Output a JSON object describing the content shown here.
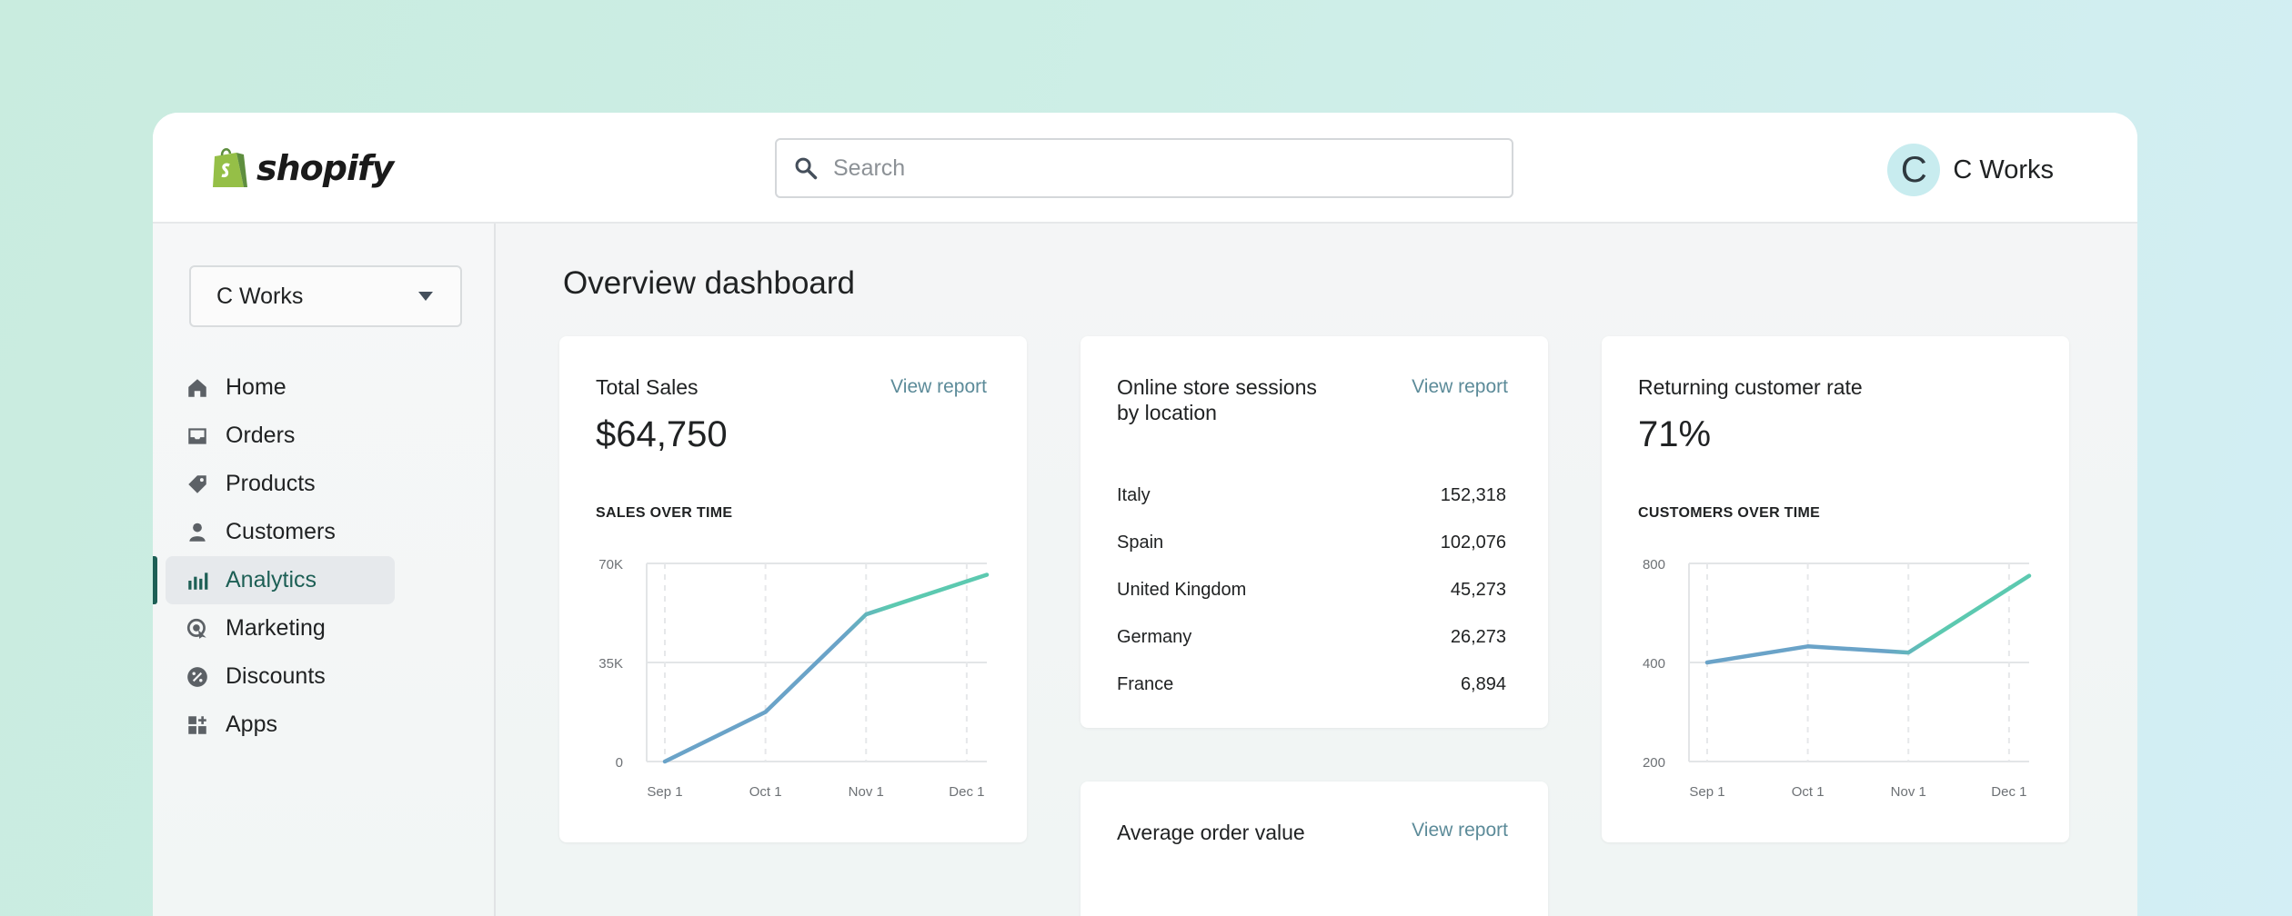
{
  "brand": {
    "name": "shopify"
  },
  "search": {
    "placeholder": "Search"
  },
  "user": {
    "initial": "C",
    "name": "C Works"
  },
  "store_selector": {
    "value": "C Works"
  },
  "nav": {
    "items": [
      {
        "label": "Home",
        "icon": "home-icon"
      },
      {
        "label": "Orders",
        "icon": "orders-icon"
      },
      {
        "label": "Products",
        "icon": "tag-icon"
      },
      {
        "label": "Customers",
        "icon": "person-icon"
      },
      {
        "label": "Analytics",
        "icon": "bar-chart-icon",
        "active": true
      },
      {
        "label": "Marketing",
        "icon": "target-icon"
      },
      {
        "label": "Discounts",
        "icon": "discount-icon"
      },
      {
        "label": "Apps",
        "icon": "apps-icon"
      }
    ]
  },
  "page": {
    "title": "Overview dashboard"
  },
  "colors": {
    "accent": "#1d5f55",
    "line_start": "#6aa3c8",
    "line_end": "#5cc9b0",
    "link": "#5c8b99"
  },
  "cards": {
    "total_sales": {
      "title": "Total Sales",
      "link": "View report",
      "value": "$64,750",
      "section": "SALES OVER TIME"
    },
    "sessions": {
      "title_line1": "Online store sessions",
      "title_line2": "by location",
      "link": "View report",
      "rows": [
        {
          "country": "Italy",
          "value": "152,318"
        },
        {
          "country": "Spain",
          "value": "102,076"
        },
        {
          "country": "United Kingdom",
          "value": "45,273"
        },
        {
          "country": "Germany",
          "value": "26,273"
        },
        {
          "country": "France",
          "value": "6,894"
        }
      ]
    },
    "returning": {
      "title": "Returning customer rate",
      "value": "71%",
      "section": "CUSTOMERS OVER TIME"
    },
    "aov": {
      "title": "Average order value",
      "link": "View report"
    }
  },
  "chart_data": [
    {
      "type": "line",
      "title": "SALES OVER TIME",
      "x": [
        "Sep 1",
        "Oct 1",
        "Nov 1",
        "Dec 1"
      ],
      "series": [
        {
          "name": "Sales",
          "x": [
            0,
            1,
            2,
            3.2
          ],
          "values": [
            0,
            17500,
            52000,
            66000
          ]
        }
      ],
      "x_ticks": [
        0,
        1,
        2,
        3
      ],
      "y_ticks": [
        0,
        35000,
        70000
      ],
      "y_tick_labels": [
        "0",
        "35K",
        "70K"
      ],
      "ylim": [
        0,
        70000
      ],
      "xlim": [
        0,
        3.2
      ],
      "grid": true
    },
    {
      "type": "line",
      "title": "CUSTOMERS OVER TIME",
      "x": [
        "Sep 1",
        "Oct 1",
        "Nov 1",
        "Dec 1"
      ],
      "series": [
        {
          "name": "Customers",
          "x": [
            0,
            1,
            2,
            3.2
          ],
          "values": [
            400,
            465,
            440,
            750
          ]
        }
      ],
      "x_ticks": [
        0,
        1,
        2,
        3
      ],
      "y_ticks": [
        200,
        400,
        800
      ],
      "y_tick_labels": [
        "200",
        "400",
        "800"
      ],
      "ylim": [
        200,
        800
      ],
      "y_scale": "piecewise",
      "xlim": [
        0,
        3.2
      ],
      "grid": true
    }
  ]
}
